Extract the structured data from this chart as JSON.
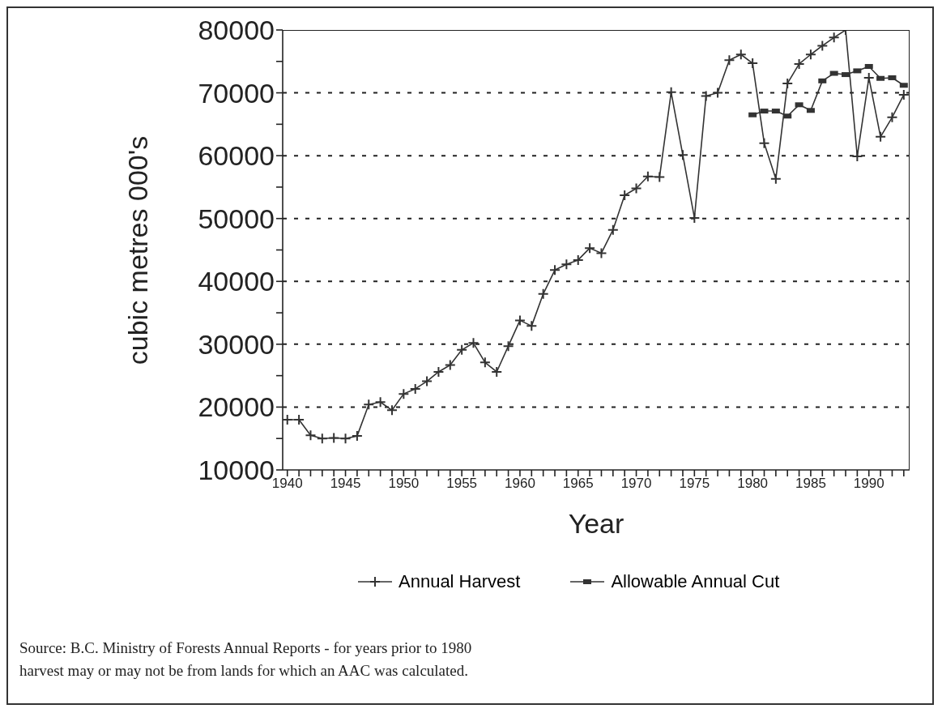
{
  "chart_data": {
    "type": "line",
    "xlabel": "Year",
    "ylabel": "cubic metres 000's",
    "xlim": [
      1939.6,
      1993.5
    ],
    "xticks": [
      1940,
      {
        "value": 1941,
        "label": null
      },
      {
        "value": 1942,
        "label": null
      },
      {
        "value": 1943,
        "label": null
      },
      {
        "value": 1944,
        "label": null
      },
      1945,
      {
        "value": 1946,
        "label": null
      },
      {
        "value": 1947,
        "label": null
      },
      {
        "value": 1948,
        "label": null
      },
      {
        "value": 1949,
        "label": null
      },
      1950,
      {
        "value": 1951,
        "label": null
      },
      {
        "value": 1952,
        "label": null
      },
      {
        "value": 1953,
        "label": null
      },
      {
        "value": 1954,
        "label": null
      },
      1955,
      {
        "value": 1956,
        "label": null
      },
      {
        "value": 1957,
        "label": null
      },
      {
        "value": 1958,
        "label": null
      },
      {
        "value": 1959,
        "label": null
      },
      1960,
      {
        "value": 1961,
        "label": null
      },
      {
        "value": 1962,
        "label": null
      },
      {
        "value": 1963,
        "label": null
      },
      {
        "value": 1964,
        "label": null
      },
      1965,
      {
        "value": 1966,
        "label": null
      },
      {
        "value": 1967,
        "label": null
      },
      {
        "value": 1968,
        "label": null
      },
      {
        "value": 1969,
        "label": null
      },
      1970,
      {
        "value": 1971,
        "label": null
      },
      {
        "value": 1972,
        "label": null
      },
      {
        "value": 1973,
        "label": null
      },
      {
        "value": 1974,
        "label": null
      },
      1975,
      {
        "value": 1976,
        "label": null
      },
      {
        "value": 1977,
        "label": null
      },
      {
        "value": 1978,
        "label": null
      },
      {
        "value": 1979,
        "label": null
      },
      1980,
      {
        "value": 1981,
        "label": null
      },
      {
        "value": 1982,
        "label": null
      },
      {
        "value": 1983,
        "label": null
      },
      {
        "value": 1984,
        "label": null
      },
      1985,
      {
        "value": 1986,
        "label": null
      },
      {
        "value": 1987,
        "label": null
      },
      {
        "value": 1988,
        "label": null
      },
      {
        "value": 1989,
        "label": null
      },
      1990,
      {
        "value": 1991,
        "label": null
      },
      {
        "value": 1992,
        "label": null
      },
      {
        "value": 1993,
        "label": null
      }
    ],
    "ylim": [
      10000,
      80000
    ],
    "yticks": [
      10000,
      {
        "value": 15000,
        "label": null
      },
      20000,
      {
        "value": 25000,
        "label": null
      },
      30000,
      {
        "value": 35000,
        "label": null
      },
      40000,
      {
        "value": 45000,
        "label": null
      },
      50000,
      {
        "value": 55000,
        "label": null
      },
      60000,
      {
        "value": 65000,
        "label": null
      },
      70000,
      {
        "value": 75000,
        "label": null
      },
      80000
    ],
    "grid": "y",
    "legend": "bottom",
    "line_style": "solid",
    "series": [
      {
        "name": "Annual Harvest",
        "color": "#333333",
        "marker": "cross",
        "x": [
          1940,
          1941,
          1942,
          1943,
          1944,
          1945,
          1946,
          1947,
          1948,
          1949,
          1950,
          1951,
          1952,
          1953,
          1954,
          1955,
          1956,
          1957,
          1958,
          1959,
          1960,
          1961,
          1962,
          1963,
          1964,
          1965,
          1966,
          1967,
          1968,
          1969,
          1970,
          1971,
          1972,
          1973,
          1974,
          1975,
          1976,
          1977,
          1978,
          1979,
          1980,
          1981,
          1982,
          1983,
          1984,
          1985,
          1986,
          1987,
          1988,
          1989,
          1990,
          1991,
          1992,
          1993
        ],
        "values": [
          18000,
          18000,
          15500,
          15000,
          15100,
          15000,
          15400,
          20400,
          20800,
          19500,
          22100,
          22900,
          24100,
          25600,
          26700,
          29100,
          30200,
          27100,
          25600,
          29700,
          33800,
          32900,
          38000,
          41800,
          42700,
          43400,
          45300,
          44500,
          48200,
          53700,
          54800,
          56700,
          56600,
          70100,
          60100,
          50100,
          69500,
          70000,
          75200,
          76100,
          74700,
          62000,
          56300,
          71500,
          74600,
          76100,
          77500,
          78800,
          80000,
          59900,
          72400,
          63000,
          66100,
          69700
        ]
      },
      {
        "name": "Allowable Annual Cut",
        "color": "#333333",
        "marker": "square",
        "x": [
          1980,
          1981,
          1982,
          1983,
          1984,
          1985,
          1986,
          1987,
          1988,
          1989,
          1990,
          1991,
          1992,
          1993
        ],
        "values": [
          66500,
          67100,
          67100,
          66300,
          68100,
          67200,
          71900,
          73100,
          72900,
          73500,
          74200,
          72300,
          72400,
          71200
        ]
      }
    ],
    "annotations": [
      "Source: B.C. Ministry of Forests Annual Reports - for years prior to 1980",
      "harvest may or may not be from lands for which an AAC was calculated."
    ]
  }
}
